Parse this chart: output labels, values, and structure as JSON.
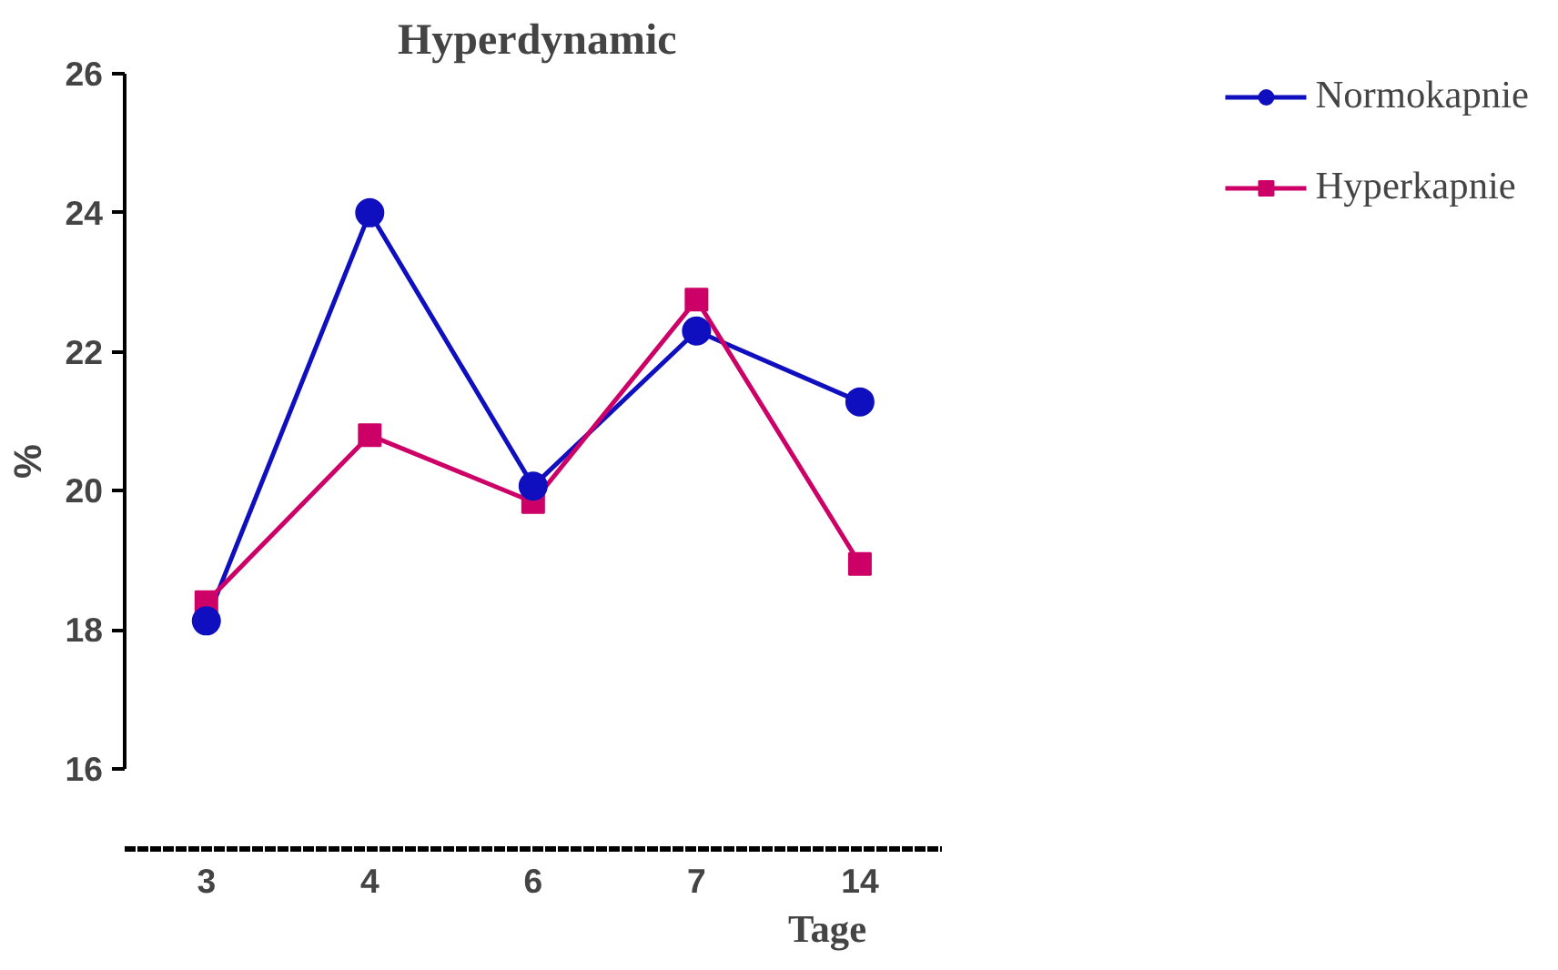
{
  "chart_data": {
    "type": "line",
    "title": "Hyperdynamic",
    "xlabel": "Tage",
    "ylabel": "%",
    "categories": [
      "3",
      "4",
      "6",
      "7",
      "14"
    ],
    "series": [
      {
        "name": "Normokapnie",
        "color": "#0f0fbf",
        "values": [
          18.13,
          24.0,
          20.07,
          22.3,
          21.28
        ],
        "marker": "circle"
      },
      {
        "name": "Hyperkapnie",
        "color": "#cc0066",
        "values": [
          18.4,
          20.8,
          19.84,
          22.75,
          18.95
        ],
        "marker": "square"
      }
    ],
    "ylim": [
      14.85,
      26
    ],
    "yticks": [
      16,
      18,
      20,
      22,
      24,
      26
    ],
    "grid": false,
    "legend": "top right",
    "line_style": "solid"
  }
}
